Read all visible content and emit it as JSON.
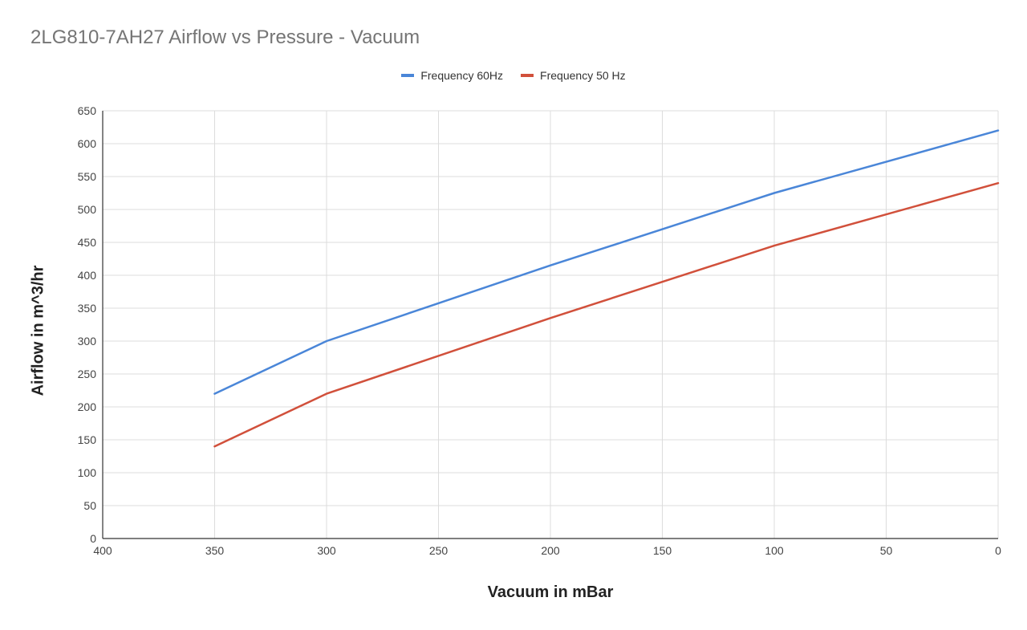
{
  "chart_data": {
    "type": "line",
    "title": "2LG810-7AH27 Airflow vs Pressure - Vacuum",
    "xlabel": "Vacuum in mBar",
    "ylabel": "Airflow in m^3/hr",
    "xlim": [
      400,
      0
    ],
    "ylim": [
      0,
      650
    ],
    "x_reversed": true,
    "xticks": [
      400,
      350,
      300,
      250,
      200,
      150,
      100,
      50,
      0
    ],
    "yticks": [
      0,
      50,
      100,
      150,
      200,
      250,
      300,
      350,
      400,
      450,
      500,
      550,
      600,
      650
    ],
    "grid": true,
    "legend_position": "top",
    "x": [
      350,
      300,
      200,
      100,
      0
    ],
    "series": [
      {
        "name": "Frequency 60Hz",
        "color": "#4a86d8",
        "values": [
          220,
          300,
          415,
          525,
          620
        ]
      },
      {
        "name": "Frequency 50 Hz",
        "color": "#d1503b",
        "values": [
          140,
          220,
          335,
          445,
          540
        ]
      }
    ]
  }
}
